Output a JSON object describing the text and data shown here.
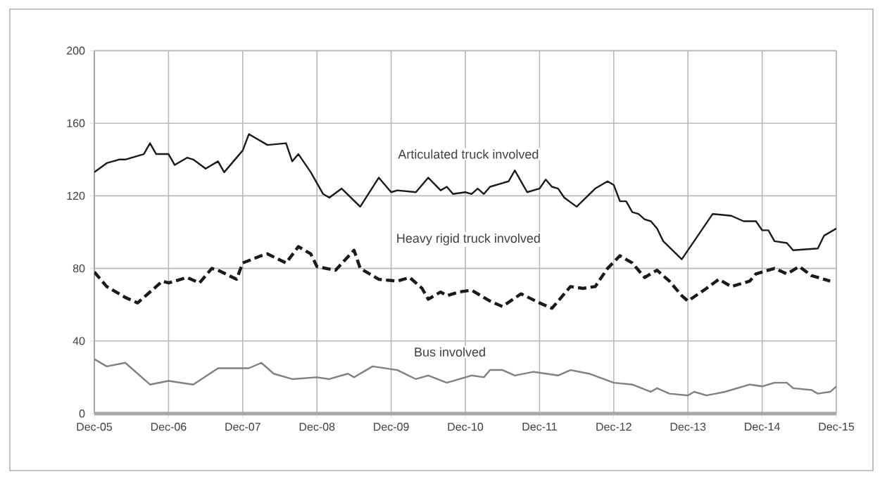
{
  "chart_data": {
    "type": "line",
    "xlim": [
      "2005-12",
      "2015-12"
    ],
    "ylim": [
      0,
      200
    ],
    "yticks": [
      0,
      40,
      80,
      120,
      160,
      200
    ],
    "xticks": [
      {
        "value": "2005-12",
        "label": "Dec-05"
      },
      {
        "value": "2006-12",
        "label": "Dec-06"
      },
      {
        "value": "2007-12",
        "label": "Dec-07"
      },
      {
        "value": "2008-12",
        "label": "Dec-08"
      },
      {
        "value": "2009-12",
        "label": "Dec-09"
      },
      {
        "value": "2010-12",
        "label": "Dec-10"
      },
      {
        "value": "2011-12",
        "label": "Dec-11"
      },
      {
        "value": "2012-12",
        "label": "Dec-12"
      },
      {
        "value": "2013-12",
        "label": "Dec-13"
      },
      {
        "value": "2014-12",
        "label": "Dec-14"
      },
      {
        "value": "2015-12",
        "label": "Dec-15"
      }
    ],
    "grid": true,
    "legend": false,
    "marker": "none",
    "series": [
      {
        "name": "Articulated truck involved",
        "color": "#1a1a1a",
        "line_style": "solid",
        "x": [
          "2005-12",
          "2006-02",
          "2006-04",
          "2006-05",
          "2006-08",
          "2006-09",
          "2006-10",
          "2006-12",
          "2007-01",
          "2007-03",
          "2007-04",
          "2007-06",
          "2007-08",
          "2007-09",
          "2007-12",
          "2008-01",
          "2008-04",
          "2008-07",
          "2008-08",
          "2008-09",
          "2008-11",
          "2009-01",
          "2009-02",
          "2009-04",
          "2009-07",
          "2009-10",
          "2009-12",
          "2010-01",
          "2010-04",
          "2010-06",
          "2010-08",
          "2010-09",
          "2010-10",
          "2010-12",
          "2011-01",
          "2011-02",
          "2011-03",
          "2011-04",
          "2011-06",
          "2011-07",
          "2011-08",
          "2011-10",
          "2011-12",
          "2012-01",
          "2012-02",
          "2012-03",
          "2012-04",
          "2012-06",
          "2012-09",
          "2012-11",
          "2012-12",
          "2013-01",
          "2013-02",
          "2013-03",
          "2013-04",
          "2013-05",
          "2013-06",
          "2013-07",
          "2013-08",
          "2013-11",
          "2014-04",
          "2014-07",
          "2014-09",
          "2014-11",
          "2014-12",
          "2015-01",
          "2015-02",
          "2015-04",
          "2015-05",
          "2015-09",
          "2015-10",
          "2015-11",
          "2015-12"
        ],
        "values": [
          133,
          138,
          140,
          140,
          143,
          149,
          143,
          143,
          137,
          141,
          140,
          135,
          139,
          133,
          145,
          154,
          148,
          149,
          139,
          143,
          133,
          121,
          119,
          124,
          114,
          130,
          122,
          123,
          122,
          130,
          123,
          125,
          121,
          122,
          121,
          124,
          121,
          125,
          127,
          128,
          134,
          122,
          124,
          129,
          125,
          124,
          119,
          114,
          124,
          128,
          126,
          117,
          117,
          111,
          110,
          107,
          106,
          102,
          95,
          85,
          110,
          109,
          106,
          106,
          101,
          101,
          95,
          94,
          90,
          91,
          98,
          100,
          102
        ]
      },
      {
        "name": "Heavy rigid truck involved",
        "color": "#1a1a1a",
        "line_style": "dashed",
        "x": [
          "2005-12",
          "2006-02",
          "2006-05",
          "2006-07",
          "2006-09",
          "2006-11",
          "2006-12",
          "2007-03",
          "2007-05",
          "2007-07",
          "2007-08",
          "2007-11",
          "2007-12",
          "2008-03",
          "2008-04",
          "2008-07",
          "2008-09",
          "2008-11",
          "2008-12",
          "2009-03",
          "2009-06",
          "2009-07",
          "2009-10",
          "2010-01",
          "2010-03",
          "2010-05",
          "2010-06",
          "2010-08",
          "2010-09",
          "2010-11",
          "2011-01",
          "2011-04",
          "2011-06",
          "2011-09",
          "2011-12",
          "2012-02",
          "2012-03",
          "2012-05",
          "2012-07",
          "2012-09",
          "2012-11",
          "2013-01",
          "2013-03",
          "2013-05",
          "2013-07",
          "2013-09",
          "2013-11",
          "2013-12",
          "2014-03",
          "2014-05",
          "2014-07",
          "2014-10",
          "2014-11",
          "2015-02",
          "2015-04",
          "2015-06",
          "2015-08",
          "2015-11"
        ],
        "values": [
          78,
          70,
          64,
          61,
          67,
          73,
          72,
          75,
          72,
          80,
          79,
          74,
          83,
          87,
          88,
          83,
          92,
          88,
          81,
          79,
          90,
          80,
          74,
          73,
          75,
          69,
          63,
          67,
          65,
          67,
          68,
          62,
          59,
          66,
          61,
          58,
          62,
          70,
          69,
          70,
          80,
          87,
          83,
          75,
          79,
          73,
          65,
          62,
          69,
          74,
          70,
          73,
          77,
          80,
          77,
          81,
          76,
          73
        ]
      },
      {
        "name": "Bus involved",
        "color": "#808080",
        "line_style": "solid",
        "x": [
          "2005-12",
          "2006-02",
          "2006-05",
          "2006-09",
          "2006-12",
          "2007-04",
          "2007-08",
          "2008-01",
          "2008-03",
          "2008-05",
          "2008-08",
          "2008-12",
          "2009-02",
          "2009-05",
          "2009-06",
          "2009-09",
          "2010-01",
          "2010-04",
          "2010-06",
          "2010-09",
          "2011-01",
          "2011-03",
          "2011-04",
          "2011-06",
          "2011-08",
          "2011-11",
          "2012-03",
          "2012-05",
          "2012-08",
          "2012-12",
          "2013-03",
          "2013-06",
          "2013-07",
          "2013-09",
          "2013-12",
          "2014-01",
          "2014-03",
          "2014-06",
          "2014-10",
          "2014-12",
          "2015-02",
          "2015-04",
          "2015-05",
          "2015-08",
          "2015-09",
          "2015-11",
          "2015-12"
        ],
        "values": [
          30,
          26,
          28,
          16,
          18,
          16,
          25,
          25,
          28,
          22,
          19,
          20,
          19,
          22,
          20,
          26,
          24,
          19,
          21,
          17,
          21,
          20,
          24,
          24,
          21,
          23,
          21,
          24,
          22,
          17,
          16,
          12,
          14,
          11,
          10,
          12,
          10,
          12,
          16,
          15,
          17,
          17,
          14,
          13,
          11,
          12,
          15
        ]
      }
    ]
  }
}
